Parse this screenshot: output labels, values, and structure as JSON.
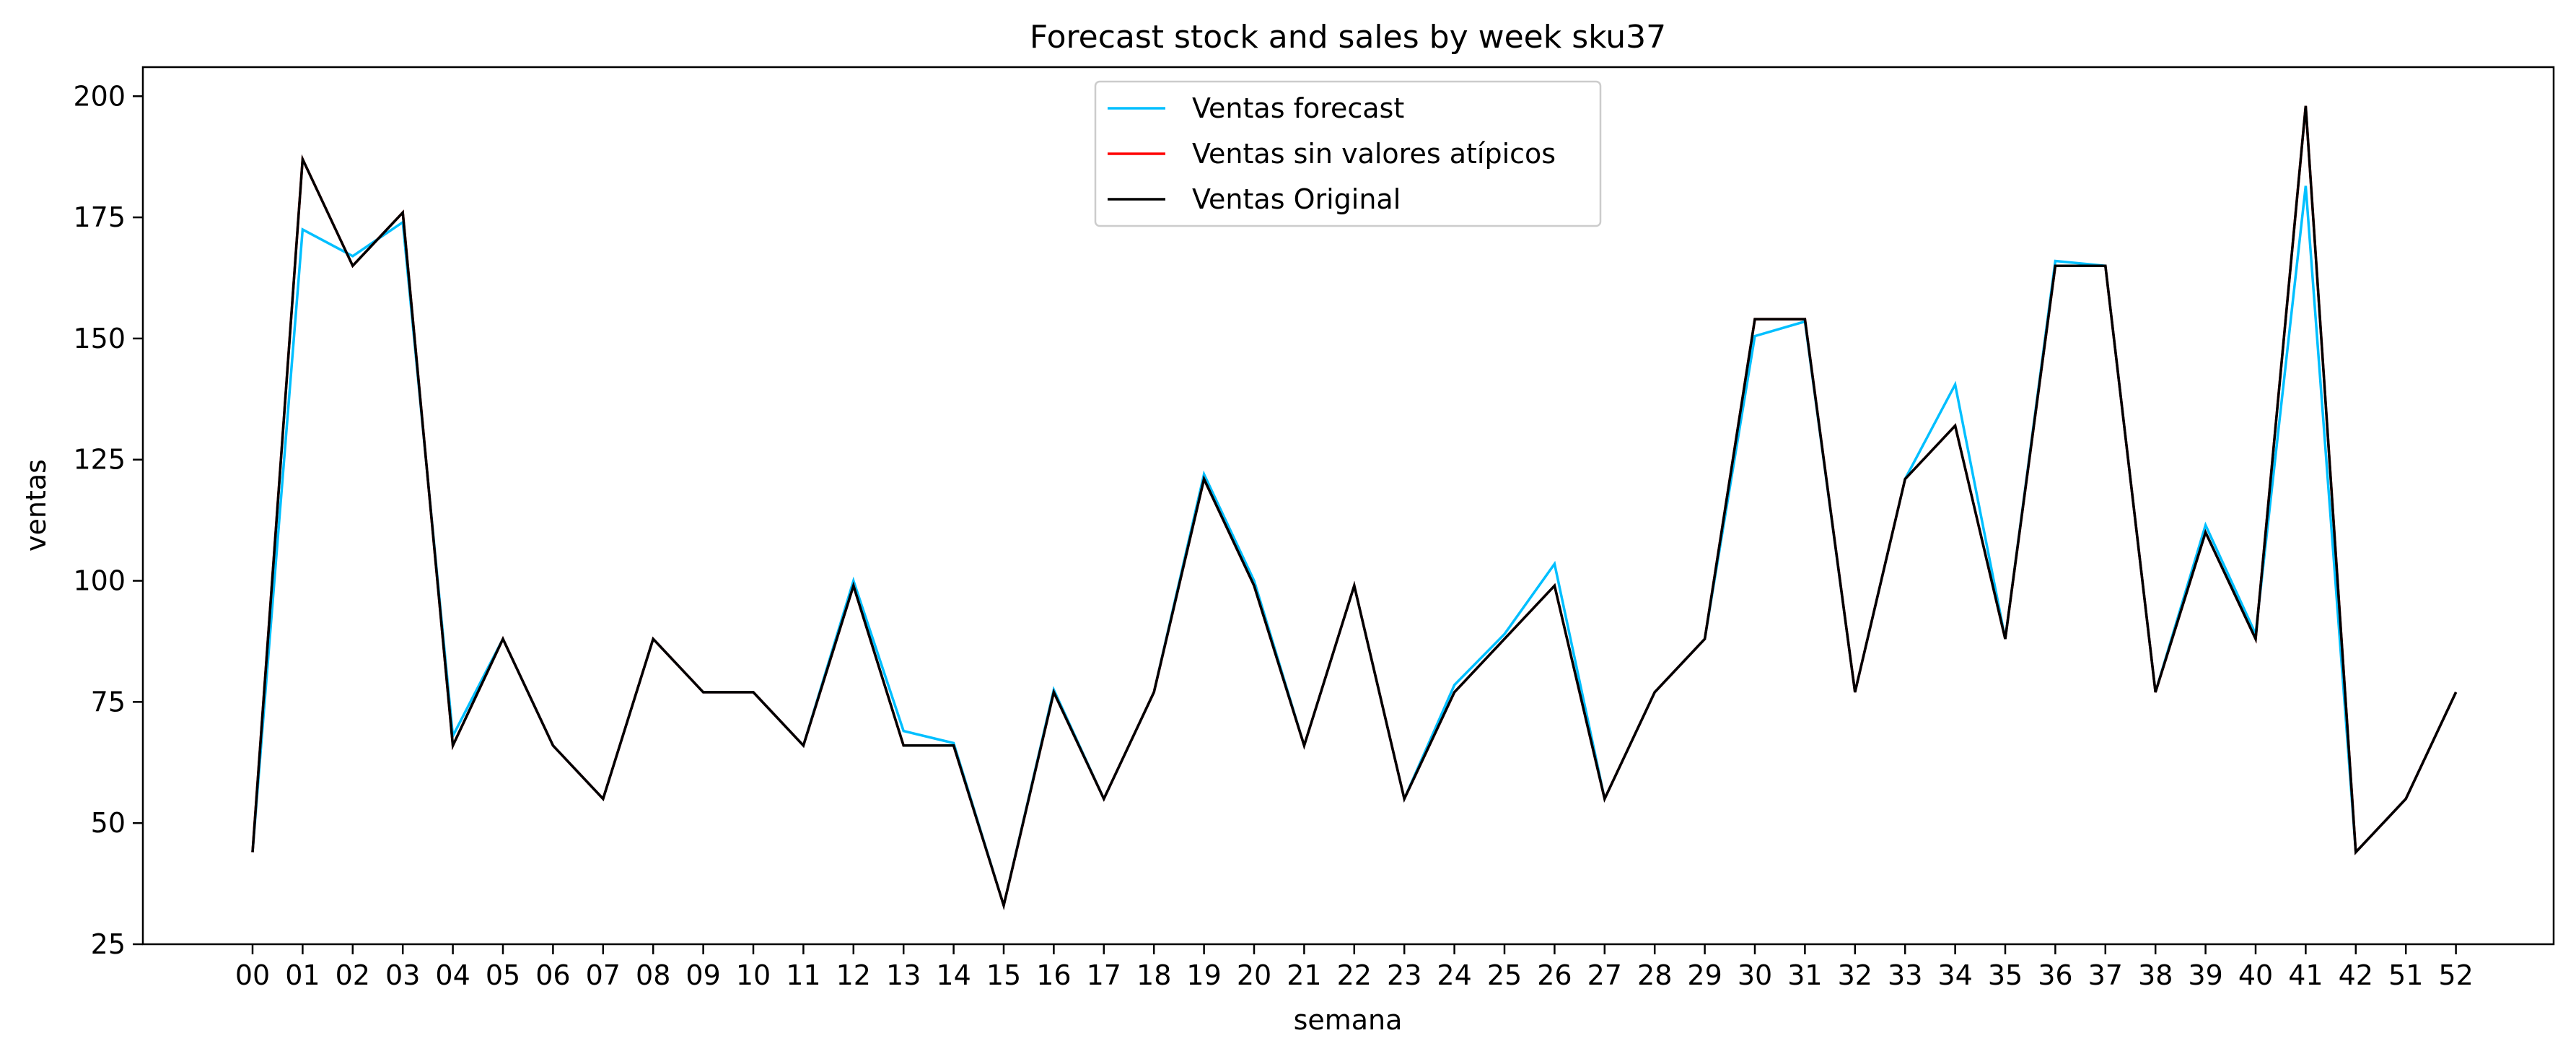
{
  "chart_data": {
    "type": "line",
    "title": "Forecast stock and sales by week sku37",
    "xlabel": "semana",
    "ylabel": "ventas",
    "categories": [
      "00",
      "01",
      "02",
      "03",
      "04",
      "05",
      "06",
      "07",
      "08",
      "09",
      "10",
      "11",
      "12",
      "13",
      "14",
      "15",
      "16",
      "17",
      "18",
      "19",
      "20",
      "21",
      "22",
      "23",
      "24",
      "25",
      "26",
      "27",
      "28",
      "29",
      "30",
      "31",
      "32",
      "33",
      "34",
      "35",
      "36",
      "37",
      "38",
      "39",
      "40",
      "41",
      "42",
      "51",
      "52"
    ],
    "ylim": [
      25,
      206
    ],
    "yticks": [
      25,
      50,
      75,
      100,
      125,
      150,
      175,
      200
    ],
    "grid": false,
    "legend_position": "top-center",
    "series": [
      {
        "name": "Ventas forecast",
        "color": "#00bfff",
        "values": [
          44,
          172.5,
          167,
          174,
          68,
          88,
          66,
          55,
          88,
          77,
          77,
          66,
          100,
          69,
          66.5,
          33,
          77.5,
          55,
          77,
          122,
          100,
          66,
          99,
          55,
          78.5,
          89,
          103.5,
          55,
          77,
          88,
          150.5,
          153.5,
          77,
          121,
          140.5,
          88,
          166,
          165,
          77,
          111.5,
          89,
          181.5,
          44,
          55,
          77
        ]
      },
      {
        "name": "Ventas sin valores atípicos",
        "color": "#ff0000",
        "values": [
          44,
          187,
          165,
          176,
          66,
          88,
          66,
          55,
          88,
          77,
          77,
          66,
          99,
          66,
          66,
          33,
          77,
          55,
          77,
          121,
          99,
          66,
          99,
          55,
          77,
          88,
          99,
          55,
          77,
          88,
          154,
          154,
          77,
          121,
          132,
          88,
          165,
          165,
          77,
          110,
          88,
          198,
          44,
          55,
          77
        ]
      },
      {
        "name": "Ventas Original",
        "color": "#000000",
        "values": [
          44,
          187,
          165,
          176,
          66,
          88,
          66,
          55,
          88,
          77,
          77,
          66,
          99,
          66,
          66,
          33,
          77,
          55,
          77,
          121,
          99,
          66,
          99,
          55,
          77,
          88,
          99,
          55,
          77,
          88,
          154,
          154,
          77,
          121,
          132,
          88,
          165,
          165,
          77,
          110,
          88,
          198,
          44,
          55,
          77
        ]
      }
    ]
  }
}
